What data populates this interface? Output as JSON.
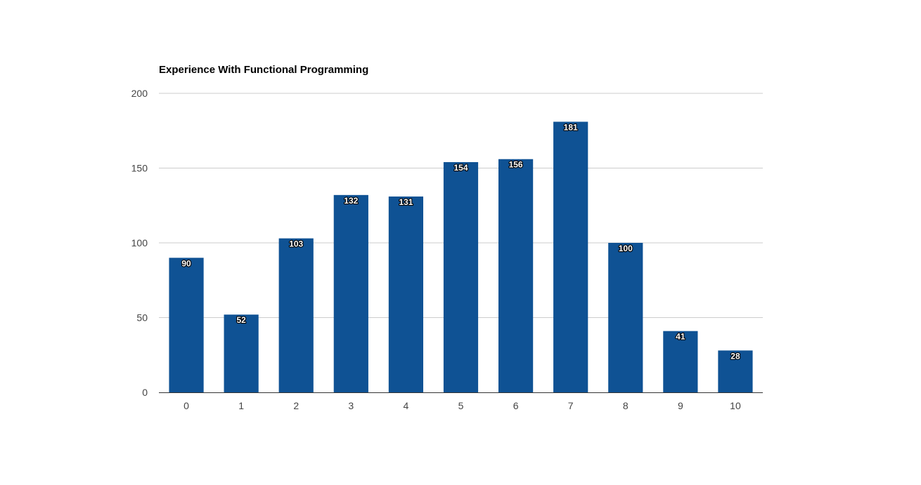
{
  "chart_data": {
    "type": "bar",
    "title": "Experience With Functional Programming",
    "xlabel": "",
    "ylabel": "",
    "categories": [
      "0",
      "1",
      "2",
      "3",
      "4",
      "5",
      "6",
      "7",
      "8",
      "9",
      "10"
    ],
    "values": [
      90,
      52,
      103,
      132,
      131,
      154,
      156,
      181,
      100,
      41,
      28
    ],
    "ylim": [
      0,
      200
    ],
    "yticks": [
      0,
      50,
      100,
      150,
      200
    ],
    "grid": true,
    "legend": "none",
    "data_labels": true,
    "colors": {
      "bar": "#0f5294",
      "grid": "#cccccc",
      "axis": "#333333",
      "tick_text": "#444444",
      "title_text": "#000000"
    }
  }
}
